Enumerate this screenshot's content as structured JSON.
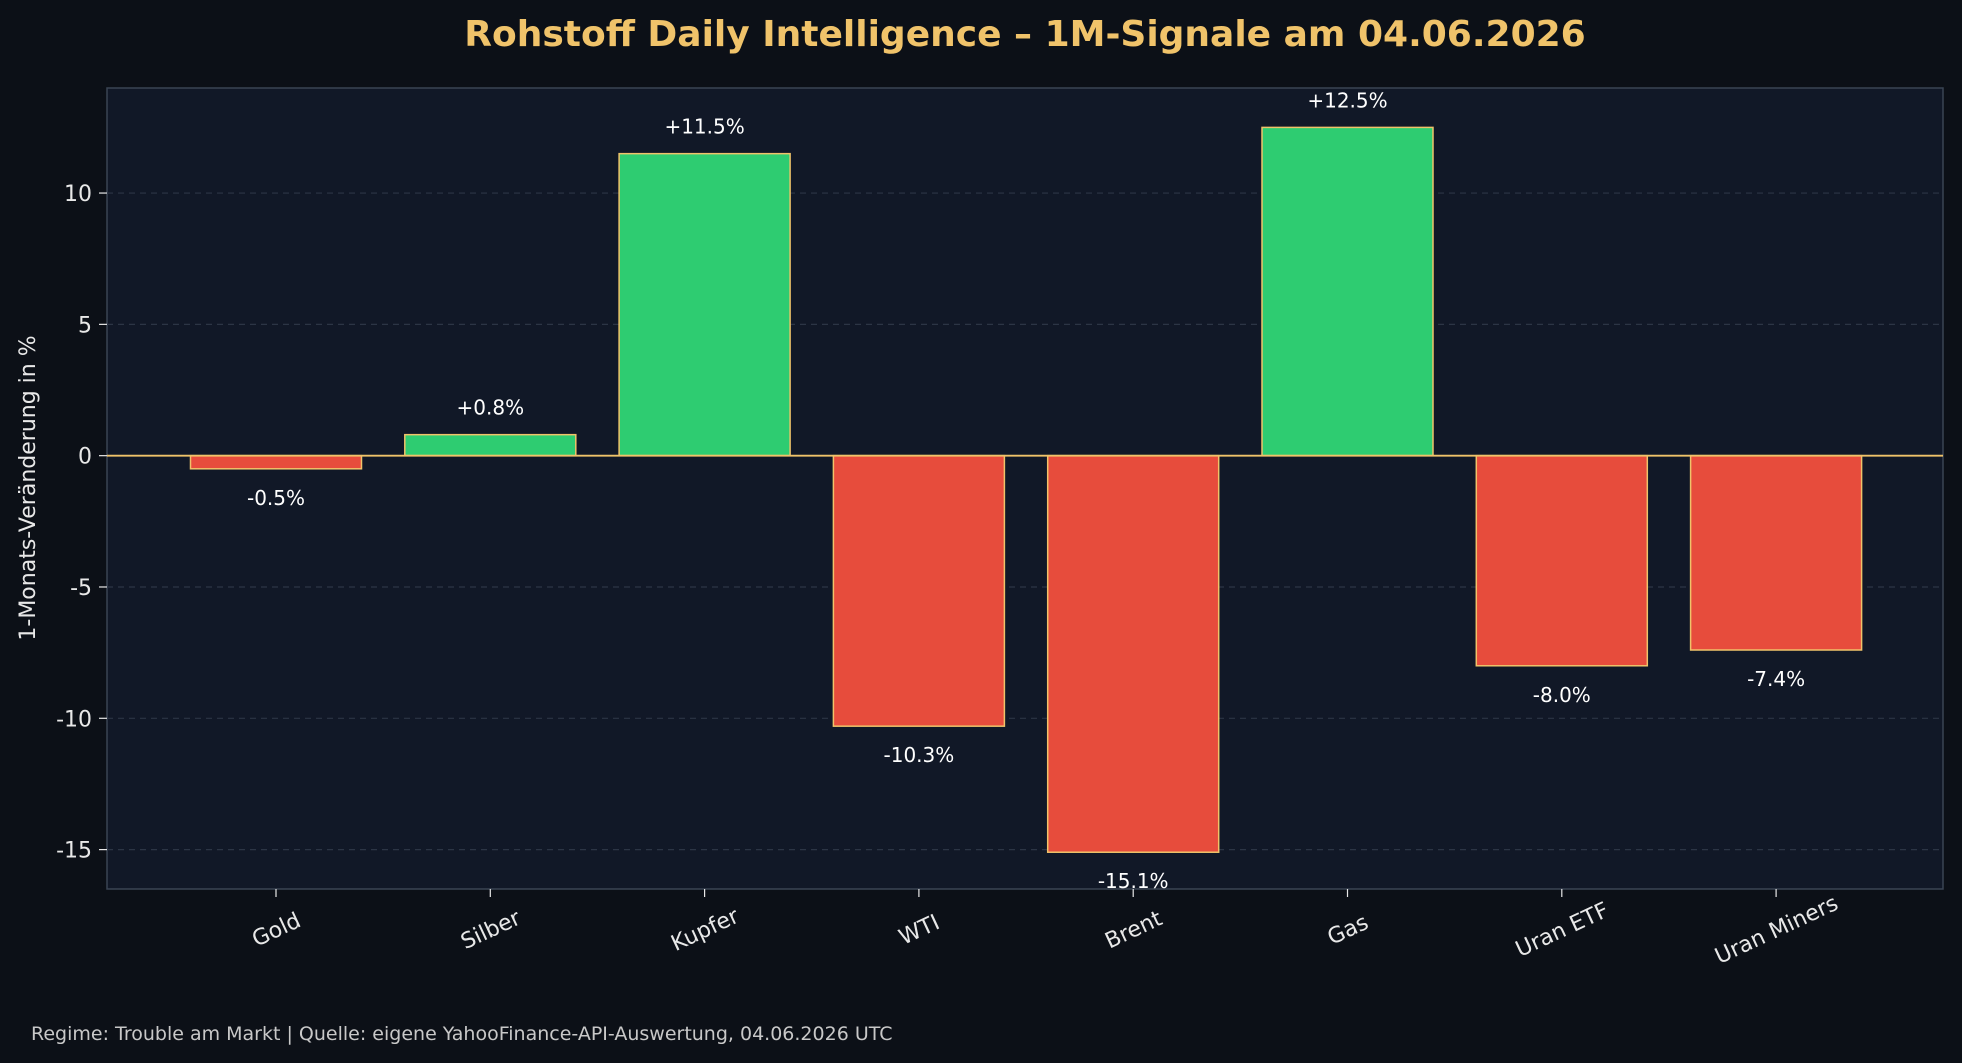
{
  "chart_data": {
    "type": "bar",
    "title": "Rohstoff Daily Intelligence – 1M-Signale am 04.06.2026",
    "ylabel": "1-Monats-Veränderung in %",
    "xlabel": "",
    "categories": [
      "Gold",
      "Silber",
      "Kupfer",
      "WTI",
      "Brent",
      "Gas",
      "Uran ETF",
      "Uran Miners"
    ],
    "values": [
      -0.5,
      0.8,
      11.5,
      -10.3,
      -15.1,
      12.5,
      -8.0,
      -7.4
    ],
    "data_labels": [
      "-0.5%",
      "+0.8%",
      "+11.5%",
      "-10.3%",
      "-15.1%",
      "+12.5%",
      "-8.0%",
      "-7.4%"
    ],
    "ylim": [
      -16.5,
      14
    ],
    "yticks": [
      10,
      5,
      0,
      -5,
      -10,
      -15
    ],
    "grid": "horizontal-dashed",
    "colors": {
      "positive": "#2ecc71",
      "negative": "#e74c3c",
      "bar_edge": "#f0c36a",
      "zero_line": "#f0c36a",
      "title": "#f0c36a",
      "background": "#0c1017",
      "plot_background": "#111827"
    }
  },
  "footer": "Regime: Trouble am Markt | Quelle: eigene YahooFinance-API-Auswertung, 04.06.2026 UTC"
}
